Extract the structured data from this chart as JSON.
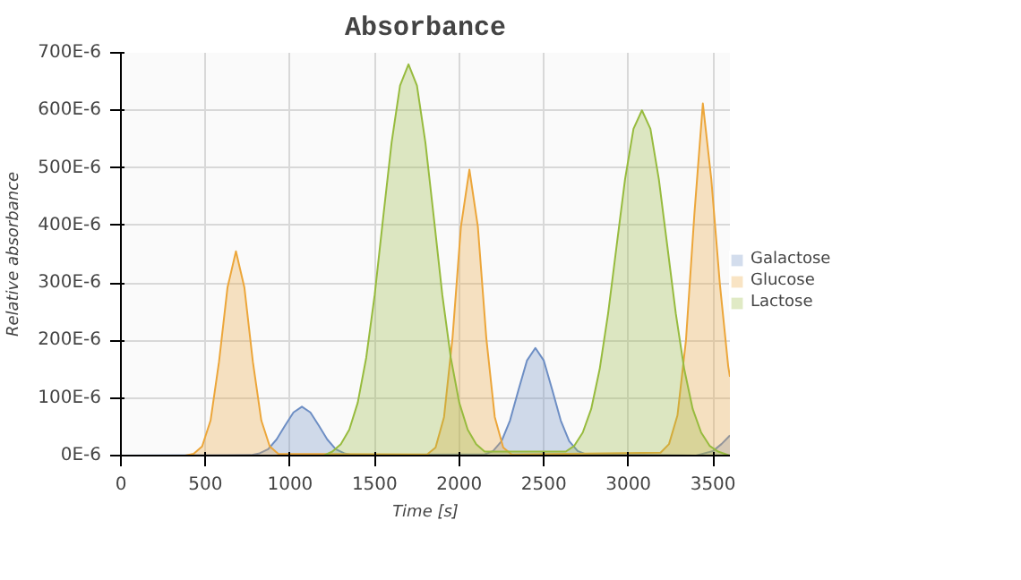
{
  "chart_data": {
    "type": "area",
    "title": "Absorbance",
    "xlabel": "Time [s]",
    "ylabel": "Relative absorbance",
    "xlim": [
      0,
      3600
    ],
    "xticks": [
      0,
      500,
      1000,
      1500,
      2000,
      2500,
      3000,
      3500
    ],
    "ylim": [
      0,
      0.0007
    ],
    "yticks": [
      {
        "value": 0,
        "label": "0E-6"
      },
      {
        "value": 0.0001,
        "label": "100E-6"
      },
      {
        "value": 0.0002,
        "label": "200E-6"
      },
      {
        "value": 0.0003,
        "label": "300E-6"
      },
      {
        "value": 0.0004,
        "label": "400E-6"
      },
      {
        "value": 0.0005,
        "label": "500E-6"
      },
      {
        "value": 0.0006,
        "label": "600E-6"
      },
      {
        "value": 0.0007,
        "label": "700E-6"
      }
    ],
    "grid": true,
    "legend": "right",
    "series": [
      {
        "name": "Galactose",
        "color": "#6d8ec4",
        "x": [
          0,
          770,
          820,
          870,
          920,
          970,
          1020,
          1070,
          1120,
          1170,
          1220,
          1270,
          1320,
          1370,
          2150,
          2200,
          2250,
          2300,
          2350,
          2400,
          2450,
          2500,
          2550,
          2600,
          2650,
          2700,
          2750,
          3400,
          3500,
          3550,
          3600
        ],
        "values": [
          0,
          1e-06,
          4e-06,
          1.1e-05,
          2.8e-05,
          5.2e-05,
          7.5e-05,
          8.5e-05,
          7.5e-05,
          5.2e-05,
          2.8e-05,
          1.1e-05,
          4e-06,
          1e-06,
          2e-06,
          8e-06,
          2.5e-05,
          6.1e-05,
          0.000114,
          0.000165,
          0.000187,
          0.000165,
          0.000114,
          6.1e-05,
          2.5e-05,
          8e-06,
          2e-06,
          0,
          8e-06,
          2e-05,
          3.5e-05
        ]
      },
      {
        "name": "Glucose",
        "color": "#eca63a",
        "x": [
          0,
          380,
          430,
          480,
          530,
          580,
          630,
          680,
          730,
          780,
          830,
          880,
          930,
          1810,
          1860,
          1910,
          1960,
          2010,
          2060,
          2110,
          2160,
          2210,
          2260,
          2310,
          3190,
          3240,
          3290,
          3340,
          3390,
          3440,
          3490,
          3540,
          3590,
          3600
        ],
        "values": [
          0,
          0,
          3e-06,
          1.6e-05,
          6.1e-05,
          0.000163,
          0.000292,
          0.000355,
          0.000292,
          0.000163,
          6.1e-05,
          1.6e-05,
          3e-06,
          2e-06,
          1.4e-05,
          6.7e-05,
          0.000204,
          0.000398,
          0.000497,
          0.000398,
          0.000204,
          6.7e-05,
          1.4e-05,
          2e-06,
          5e-06,
          2e-05,
          7e-05,
          0.0002,
          0.00042,
          0.000612,
          0.00048,
          0.0003,
          0.000155,
          0.000137
        ]
      },
      {
        "name": "Lactose",
        "color": "#97bb3e",
        "x": [
          0,
          1200,
          1250,
          1300,
          1350,
          1400,
          1450,
          1500,
          1550,
          1600,
          1650,
          1700,
          1750,
          1800,
          1850,
          1900,
          1950,
          2000,
          2050,
          2100,
          2150,
          2630,
          2680,
          2730,
          2780,
          2830,
          2880,
          2930,
          2980,
          3030,
          3080,
          3130,
          3180,
          3230,
          3280,
          3330,
          3380,
          3430,
          3480,
          3530,
          3600
        ],
        "values": [
          0,
          0,
          7e-06,
          2e-05,
          4.5e-05,
          9.2e-05,
          0.00017,
          0.000279,
          0.000413,
          0.000544,
          0.000643,
          0.00068,
          0.000643,
          0.000544,
          0.000413,
          0.000279,
          0.00017,
          9.2e-05,
          4.5e-05,
          2e-05,
          7e-06,
          7e-06,
          1.7e-05,
          4e-05,
          8.1e-05,
          0.00015,
          0.000247,
          0.000364,
          0.00048,
          0.000568,
          0.0006,
          0.000568,
          0.00048,
          0.000364,
          0.000247,
          0.00015,
          8.1e-05,
          4e-05,
          1.7e-05,
          7e-06,
          0
        ]
      }
    ]
  }
}
